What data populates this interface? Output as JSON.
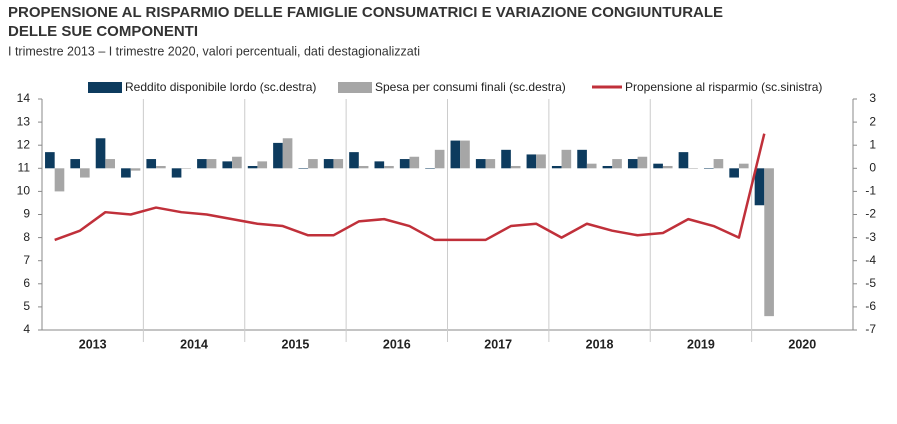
{
  "chart_data": {
    "type": "bar-line",
    "title": [
      "PROPENSIONE AL RISPARMIO DELLE FAMIGLIE CONSUMATRICI E VARIAZIONE CONGIUNTURALE",
      "DELLE SUE COMPONENTI"
    ],
    "subtitle": "I trimestre 2013 – I trimestre 2020, valori percentuali, dati destagionalizzati",
    "categories": [
      "2013",
      null,
      null,
      null,
      "2014",
      null,
      null,
      null,
      "2015",
      null,
      null,
      null,
      "2016",
      null,
      null,
      null,
      "2017",
      null,
      null,
      null,
      "2018",
      null,
      null,
      null,
      "2019",
      null,
      null,
      null,
      "2020",
      null,
      null,
      null
    ],
    "series": [
      {
        "name": "Reddito disponibile lordo (sc.destra)",
        "type": "bar",
        "axis": "y2",
        "color": "#0d3b5e",
        "values": [
          0.7,
          0.4,
          1.3,
          -0.4,
          0.4,
          -0.4,
          0.4,
          0.3,
          0.1,
          1.1,
          0,
          0.4,
          0.7,
          0.3,
          0.4,
          0,
          1.2,
          0.4,
          0.8,
          0.6,
          0.1,
          0.8,
          0.1,
          0.4,
          0.2,
          0.7,
          0,
          -0.4,
          -1.6,
          null,
          null,
          null
        ]
      },
      {
        "name": "Spesa per consumi finali (sc.destra)",
        "type": "bar",
        "axis": "y2",
        "color": "#a6a6a6",
        "values": [
          -1.0,
          -0.4,
          0.4,
          -0.1,
          0.1,
          0,
          0.4,
          0.5,
          0.3,
          1.3,
          0.4,
          0.4,
          0.1,
          0.1,
          0.5,
          0.8,
          1.2,
          0.4,
          0.1,
          0.6,
          0.8,
          0.2,
          0.4,
          0.5,
          0.1,
          0,
          0.4,
          0.2,
          -6.4,
          null,
          null,
          null
        ]
      },
      {
        "name": "Propensione al risparmio (sc.sinistra)",
        "type": "line",
        "color": "#c0303a",
        "values": [
          7.9,
          8.3,
          9.1,
          9.0,
          9.3,
          9.1,
          9.0,
          8.8,
          8.6,
          8.5,
          8.1,
          8.1,
          8.7,
          8.8,
          8.5,
          7.9,
          7.9,
          7.9,
          8.5,
          8.6,
          8.0,
          8.6,
          8.3,
          8.1,
          8.2,
          8.8,
          8.5,
          8.0,
          12.5,
          null,
          null,
          null
        ]
      }
    ],
    "ylim": [
      4,
      14
    ],
    "yticks": [
      4,
      5,
      6,
      7,
      8,
      9,
      10,
      11,
      12,
      13,
      14
    ],
    "y2lim": [
      -7,
      3
    ],
    "y2ticks": [
      -7,
      -6,
      -5,
      -4,
      -3,
      -2,
      -1,
      0,
      1,
      2,
      3
    ]
  }
}
